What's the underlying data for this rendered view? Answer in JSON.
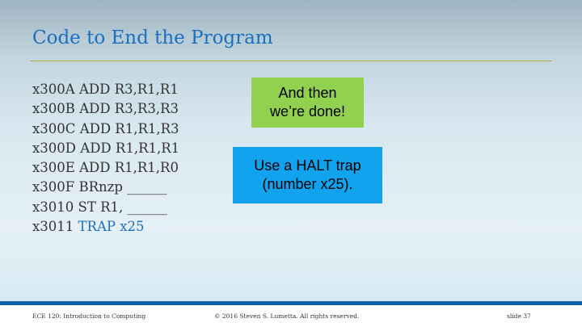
{
  "slide": {
    "title": "Code to End the Program",
    "code_lines": [
      {
        "address": "x300A",
        "instruction": "ADD R3,R1,R1"
      },
      {
        "address": "x300B",
        "instruction": "ADD R3,R3,R3"
      },
      {
        "address": "x300C",
        "instruction": "ADD R1,R1,R3"
      },
      {
        "address": "x300D",
        "instruction": "ADD R1,R1,R1"
      },
      {
        "address": "x300E",
        "instruction": "ADD R1,R1,R0"
      },
      {
        "address": "x300F",
        "instruction": "BRnzp ______"
      },
      {
        "address": "x3010",
        "instruction": "ST R1, ______"
      },
      {
        "address": "x3011",
        "instruction": "TRAP x25",
        "highlight": true
      }
    ],
    "callouts": {
      "done": {
        "line1": "And then",
        "line2": "we’re done!",
        "color": "#92d050"
      },
      "halt": {
        "line1": "Use a HALT trap",
        "line2": "(number x25).",
        "color": "#12a3ee"
      }
    }
  },
  "footer": {
    "course": "ECE 120: Introduction to Computing",
    "copyright": "© 2016 Steven S. Lumetta.  All rights reserved.",
    "slide_number": "slide 37"
  },
  "colors": {
    "title": "#1b6fbc",
    "rule": "#b9a94a",
    "footer_bar": "#1161a8"
  }
}
